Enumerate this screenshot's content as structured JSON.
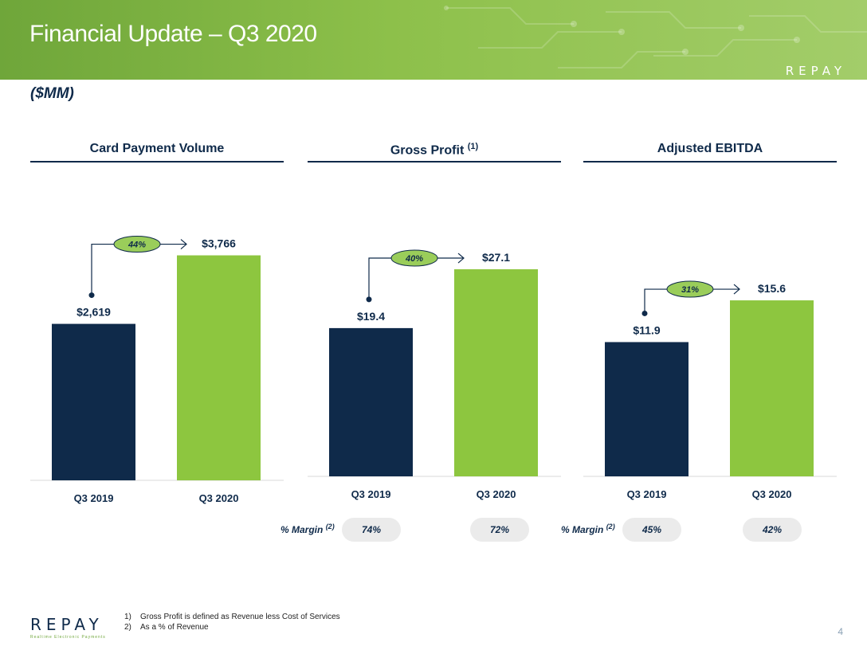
{
  "header": {
    "title": "Financial Update – Q3 2020",
    "logo": "REPAY"
  },
  "units": "($MM)",
  "colors": {
    "prior": "#0f2a4a",
    "current": "#8dc63f",
    "accent": "#0f2a4a"
  },
  "chart_data": [
    {
      "type": "bar",
      "title": "Card Payment Volume",
      "title_sup": "",
      "categories": [
        "Q3 2019",
        "Q3 2020"
      ],
      "values": [
        2619,
        3766
      ],
      "value_labels": [
        "$2,619",
        "$3,766"
      ],
      "growth": "44%",
      "ylim": [
        0,
        4400
      ]
    },
    {
      "type": "bar",
      "title": "Gross Profit",
      "title_sup": "(1)",
      "categories": [
        "Q3 2019",
        "Q3 2020"
      ],
      "values": [
        19.4,
        27.1
      ],
      "value_labels": [
        "$19.4",
        "$27.1"
      ],
      "growth": "40%",
      "ylim": [
        0,
        34.4
      ]
    },
    {
      "type": "bar",
      "title": "Adjusted EBITDA",
      "title_sup": "",
      "categories": [
        "Q3 2019",
        "Q3 2020"
      ],
      "values": [
        11.9,
        15.6
      ],
      "value_labels": [
        "$11.9",
        "$15.6"
      ],
      "growth": "31%",
      "ylim": [
        0,
        23.3
      ]
    }
  ],
  "margins": {
    "label": "% Margin",
    "label_sup": "(2)",
    "gross_profit": [
      "74%",
      "72%"
    ],
    "adjusted_ebitda": [
      "45%",
      "42%"
    ]
  },
  "footer": {
    "logo_word": "REPAY",
    "logo_tagline": "Realtime Electronic Payments",
    "notes": [
      "Gross Profit is defined as Revenue less Cost of Services",
      "As a % of Revenue"
    ],
    "page": "4"
  }
}
